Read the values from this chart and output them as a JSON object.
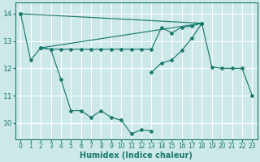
{
  "xlabel": "Humidex (Indice chaleur)",
  "bg_color": "#cde8e8",
  "grid_color": "#ffffff",
  "line_color": "#1a7a6e",
  "xlim": [
    -0.5,
    23.5
  ],
  "ylim": [
    9.4,
    14.4
  ],
  "xticks": [
    0,
    1,
    2,
    3,
    4,
    5,
    6,
    7,
    8,
    9,
    10,
    11,
    12,
    13,
    14,
    15,
    16,
    17,
    18,
    19,
    20,
    21,
    22,
    23
  ],
  "yticks": [
    10,
    11,
    12,
    13,
    14
  ],
  "line1": {
    "comment": "main descending line: 0,14 -> 1,12.3 -> 2,12.75 -> 3,12.7 -> 4,11.6 -> 5,10.45 -> 6,10.45 -> 7,10.2 -> 8,10.45 -> 9,10.2 -> 10,10.1 -> 11,9.6 -> 12,9.75 -> 13,9.7",
    "x": [
      0,
      1,
      2,
      3,
      4,
      5,
      6,
      7,
      8,
      9,
      10,
      11,
      12,
      13
    ],
    "y": [
      14.0,
      12.3,
      12.75,
      12.7,
      11.6,
      10.45,
      10.45,
      10.2,
      10.45,
      10.2,
      10.1,
      9.6,
      9.75,
      9.7
    ]
  },
  "line2": {
    "x": [
      0,
      18
    ],
    "y": [
      14.0,
      13.65
    ]
  },
  "line3": {
    "x": [
      2,
      18
    ],
    "y": [
      12.75,
      13.65
    ]
  },
  "line4": {
    "x": [
      2,
      3,
      4,
      5,
      6,
      7,
      8,
      9,
      10,
      11,
      12,
      13,
      14,
      15,
      16,
      17,
      18
    ],
    "y": [
      12.75,
      12.7,
      12.7,
      12.7,
      12.7,
      12.7,
      12.7,
      12.7,
      12.7,
      12.7,
      12.7,
      12.7,
      13.5,
      13.3,
      13.5,
      13.55,
      13.65
    ]
  },
  "line5": {
    "x": [
      13,
      14,
      15,
      16,
      17,
      18,
      19,
      20,
      21,
      22,
      23
    ],
    "y": [
      11.85,
      12.2,
      12.3,
      12.65,
      13.1,
      13.65,
      12.05,
      12.0,
      12.0,
      12.0,
      11.0
    ]
  }
}
